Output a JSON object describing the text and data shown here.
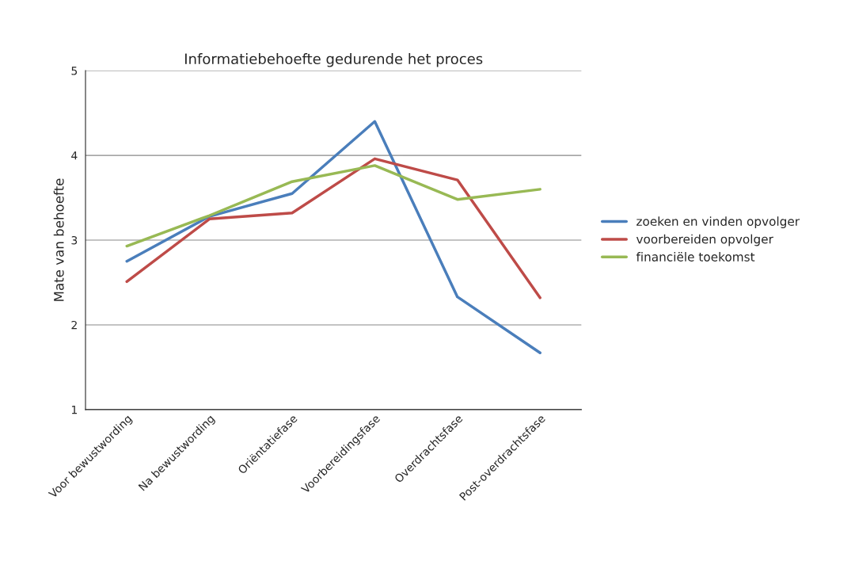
{
  "chart_data": {
    "type": "line",
    "title": "Informatiebehoefte gedurende het proces",
    "ylabel": "Mate van behoefte",
    "categories": [
      "Voor bewustwording",
      "Na bewustwording",
      "Oriëntatiefase",
      "Voorbereidingsfase",
      "Overdrachtsfase",
      "Post-overdrachtsfase"
    ],
    "series": [
      {
        "name": "zoeken en vinden opvolger",
        "color": "#4a7ebb",
        "values": [
          2.75,
          3.28,
          3.55,
          4.4,
          2.33,
          1.67
        ]
      },
      {
        "name": "voorbereiden opvolger",
        "color": "#be4b48",
        "values": [
          2.51,
          3.25,
          3.32,
          3.96,
          3.71,
          2.32
        ]
      },
      {
        "name": "financiële toekomst",
        "color": "#98b954",
        "values": [
          2.93,
          3.29,
          3.69,
          3.88,
          3.48,
          3.6
        ]
      }
    ],
    "ylim": [
      1,
      5
    ],
    "yticks": [
      1,
      2,
      3,
      4,
      5
    ],
    "grid": "y",
    "legend": "right",
    "marker": "none",
    "line_style": "solid"
  }
}
